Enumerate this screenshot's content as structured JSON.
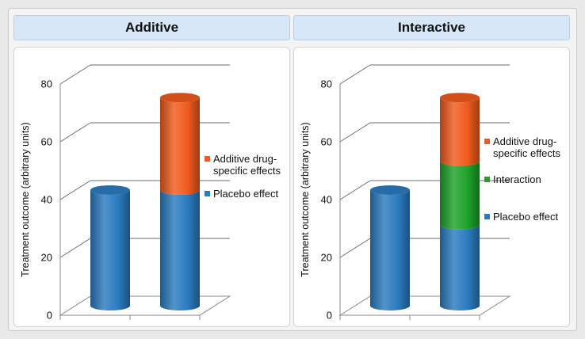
{
  "panels": [
    {
      "title": "Additive"
    },
    {
      "title": "Interactive"
    }
  ],
  "colors": {
    "placebo": "#2b7bc0",
    "additive": "#f05a1d",
    "interaction": "#1ea22a",
    "grid": "#6b6b6b",
    "panel_header_bg": "#d7e7f7"
  },
  "chart_data": [
    {
      "type": "bar",
      "title": "Additive",
      "ylabel": "Treatment outcome (arbitrary units)",
      "ylim": [
        0,
        80
      ],
      "yticks": [
        0,
        20,
        40,
        60,
        80
      ],
      "grid": true,
      "three_d": true,
      "categories": [
        "",
        ""
      ],
      "stacked": true,
      "series": [
        {
          "name": "Placebo effect",
          "color": "#2b7bc0",
          "values": [
            40,
            40
          ]
        },
        {
          "name": "Additive drug-specific effects",
          "color": "#f05a1d",
          "values": [
            0,
            32
          ]
        }
      ],
      "legend": [
        {
          "lines": [
            "Additive drug-",
            "specific effects"
          ],
          "color": "#f05a1d"
        },
        {
          "lines": [
            "Placebo effect"
          ],
          "color": "#2b7bc0"
        }
      ],
      "legend_position": "right"
    },
    {
      "type": "bar",
      "title": "Interactive",
      "ylabel": "Treatment outcome (arbitrary units)",
      "ylim": [
        0,
        80
      ],
      "yticks": [
        0,
        20,
        40,
        60,
        80
      ],
      "grid": true,
      "three_d": true,
      "categories": [
        "",
        ""
      ],
      "stacked": true,
      "series": [
        {
          "name": "Placebo effect",
          "color": "#2b7bc0",
          "values": [
            40,
            28
          ]
        },
        {
          "name": "Interaction",
          "color": "#1ea22a",
          "values": [
            0,
            22
          ]
        },
        {
          "name": "Additive drug-specific effects",
          "color": "#f05a1d",
          "values": [
            0,
            22
          ]
        }
      ],
      "legend": [
        {
          "lines": [
            "Additive drug-",
            "specific effects"
          ],
          "color": "#f05a1d"
        },
        {
          "lines": [
            "Interaction"
          ],
          "color": "#1ea22a"
        },
        {
          "lines": [
            "Placebo effect"
          ],
          "color": "#2b7bc0"
        }
      ],
      "legend_position": "right"
    }
  ]
}
